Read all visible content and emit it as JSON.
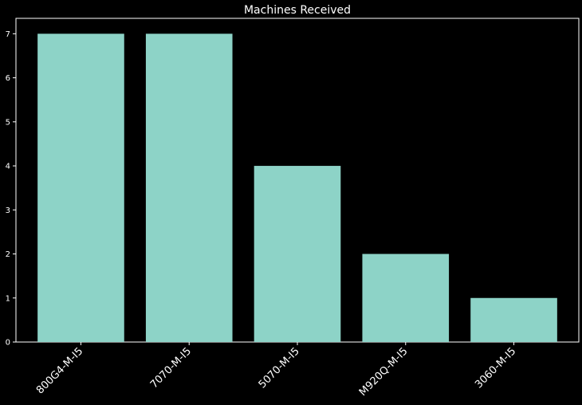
{
  "chart_data": {
    "type": "bar",
    "title": "Machines Received",
    "xlabel": "",
    "ylabel": "",
    "categories": [
      "800G4-M-I5",
      "7070-M-I5",
      "5070-M-I5",
      "M920Q-M-I5",
      "3060-M-I5"
    ],
    "values": [
      7,
      7,
      4,
      2,
      1
    ],
    "ylim": [
      0,
      7.35
    ],
    "yticks": [
      "0",
      "1",
      "2",
      "3",
      "4",
      "5",
      "6",
      "7"
    ],
    "x_tick_rotation": 45,
    "grid": false,
    "colors": {
      "bar": "#8dd3c7",
      "background": "#000000",
      "axes": "#ffffff",
      "text": "#ffffff"
    }
  }
}
